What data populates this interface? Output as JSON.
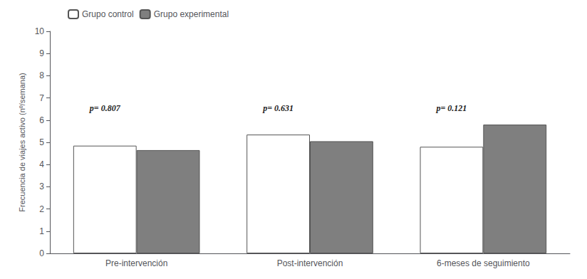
{
  "chart_data": {
    "type": "bar",
    "categories": [
      "Pre-intervención",
      "Post-intervención",
      "6-meses de seguimiento"
    ],
    "series": [
      {
        "name": "Grupo control",
        "color": "#ffffff",
        "values": [
          4.85,
          5.35,
          4.8
        ]
      },
      {
        "name": "Grupo experimental",
        "color": "#7f7f7f",
        "values": [
          4.65,
          5.05,
          5.8
        ]
      }
    ],
    "y_label": "Frecuencia de viajes activo (nº/semana)",
    "ylim": [
      0,
      10
    ],
    "yticks": [
      0,
      1,
      2,
      3,
      4,
      5,
      6,
      7,
      8,
      9,
      10
    ],
    "grid": false,
    "legend": "upper left",
    "annotations": [
      {
        "text": "p= 0.807",
        "x": "Pre-intervención",
        "y": 6.2
      },
      {
        "text": "p= 0.631",
        "x": "Post-intervención",
        "y": 6.2
      },
      {
        "text": "p= 0.121",
        "x": "6-meses de seguimiento",
        "y": 6.2
      }
    ]
  }
}
